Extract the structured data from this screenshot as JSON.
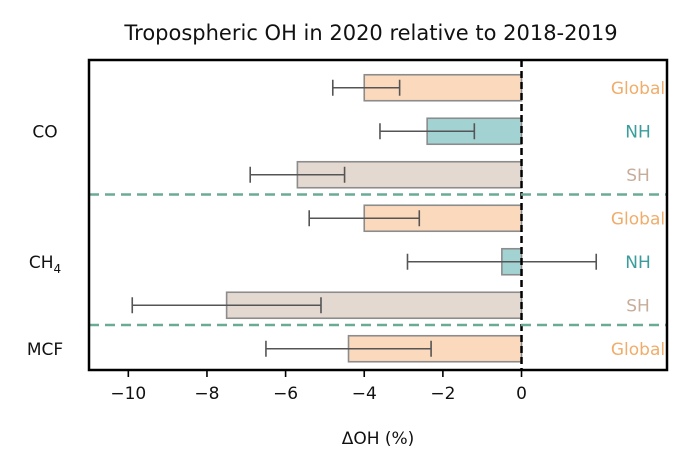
{
  "chart_data": {
    "type": "bar",
    "orientation": "horizontal",
    "title": "Tropospheric OH in 2020 relative to 2018-2019",
    "xlabel": "ΔOH (%)",
    "ylabel": "",
    "xlim": [
      -11,
      3.7
    ],
    "xticks": [
      -10,
      -8,
      -6,
      -4,
      -2,
      0
    ],
    "xtick_labels": [
      "−10",
      "−8",
      "−6",
      "−4",
      "−2",
      "0"
    ],
    "zero_line": "dashed",
    "group_separator": "dashed",
    "grid": false,
    "groups": [
      {
        "label": "CO",
        "label_sub": "",
        "rows": [
          0,
          1,
          2
        ]
      },
      {
        "label": "CH",
        "label_sub": "4",
        "rows": [
          3,
          4,
          5
        ]
      },
      {
        "label": "MCF",
        "label_sub": "",
        "rows": [
          6
        ]
      }
    ],
    "bars": [
      {
        "group": "CO",
        "region": "Global",
        "value": -4.0,
        "err_low": -4.8,
        "err_high": -3.1
      },
      {
        "group": "CO",
        "region": "NH",
        "value": -2.4,
        "err_low": -3.6,
        "err_high": -1.2
      },
      {
        "group": "CO",
        "region": "SH",
        "value": -5.7,
        "err_low": -6.9,
        "err_high": -4.5
      },
      {
        "group": "CH4",
        "region": "Global",
        "value": -4.0,
        "err_low": -5.4,
        "err_high": -2.6
      },
      {
        "group": "CH4",
        "region": "NH",
        "value": -0.5,
        "err_low": -2.9,
        "err_high": 1.9
      },
      {
        "group": "CH4",
        "region": "SH",
        "value": -7.5,
        "err_low": -9.9,
        "err_high": -5.1
      },
      {
        "group": "MCF",
        "region": "Global",
        "value": -4.4,
        "err_low": -6.5,
        "err_high": -2.3
      }
    ],
    "colors": {
      "Global": {
        "fill": "#fad9bd",
        "text": "#f0ad6a"
      },
      "NH": {
        "fill": "#a2d2d1",
        "text": "#3a9d9b"
      },
      "SH": {
        "fill": "#e4d9d0",
        "text": "#c6ad9b"
      },
      "bar_edge": "#8c8c8c",
      "error_bar": "#555555",
      "separator": "#6aab98",
      "zero_line": "#000000"
    }
  }
}
